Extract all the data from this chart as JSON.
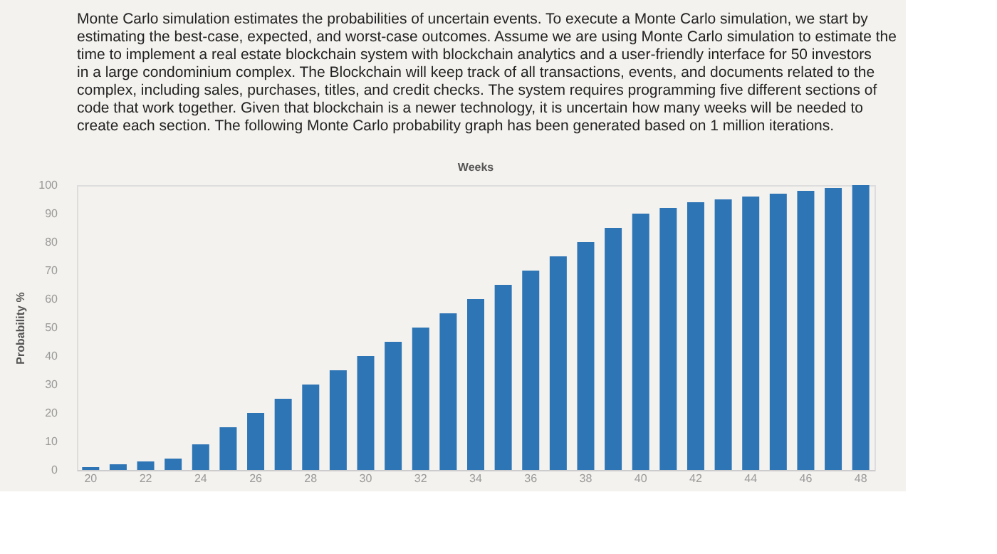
{
  "chart_data": {
    "type": "bar",
    "subtitle": "Monte Carlo simulation estimates the probabilities of uncertain events. To execute a Monte Carlo simulation, we start by estimating the best-case, expected, and worst-case outcomes. Assume we are using Monte Carlo simulation to estimate the time to implement a real estate blockchain system with blockchain analytics and a user-friendly interface for 50 investors in a large condominium complex. The Blockchain will keep track of all transactions, events, and documents related to the complex, including sales, purchases, titles, and credit checks. The system requires programming five different sections of code that work together. Given that blockchain is a newer technology, it is uncertain how many weeks will be needed to create each section. The following Monte Carlo probability graph has been generated based on 1 million iterations.",
    "xlabel": "Weeks",
    "ylabel": "Probability %",
    "categories": [
      "20",
      null,
      "22",
      null,
      "24",
      null,
      "26",
      null,
      "28",
      null,
      "30",
      null,
      "32",
      null,
      "34",
      null,
      "36",
      null,
      "38",
      null,
      "40",
      null,
      "42",
      null,
      "44",
      null,
      "46",
      null,
      "48"
    ],
    "values": [
      1,
      2,
      3,
      4,
      9,
      15,
      20,
      25,
      30,
      35,
      40,
      45,
      50,
      55,
      60,
      65,
      70,
      75,
      80,
      85,
      90,
      92,
      94,
      95,
      96,
      97,
      98,
      99,
      100
    ],
    "color": "#2e75b6",
    "ylim": [
      0,
      100
    ],
    "yticks": [
      0,
      10,
      20,
      30,
      40,
      50,
      60,
      70,
      80,
      90,
      100
    ],
    "grid": false
  }
}
